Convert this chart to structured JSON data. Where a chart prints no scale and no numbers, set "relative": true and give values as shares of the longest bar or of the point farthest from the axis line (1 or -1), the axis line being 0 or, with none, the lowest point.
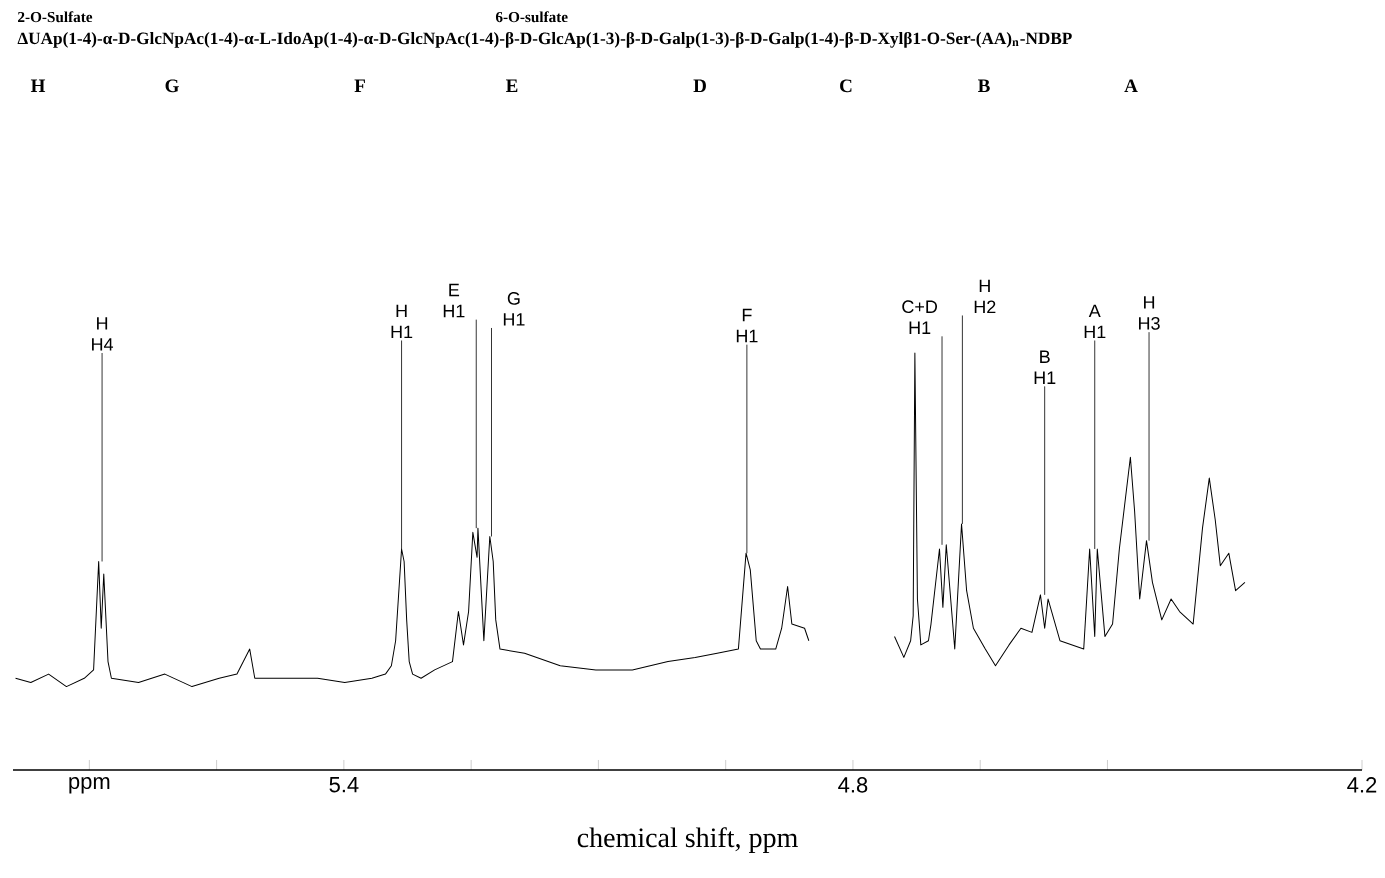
{
  "chart_data": {
    "type": "line",
    "relative": true,
    "color": "#000000",
    "title": "ΔUAp(1-4)-α-D-GlcNpAc(1-4)-α-L-IdoAp(1-4)-α-D-GlcNpAc(1-4)-β-D-GlcAp(1-3)-β-D-Galp(1-3)-β-D-Galp(1-4)-β-D-Xylβ1-O-Ser-(AA)$_{n}$-NDBP",
    "xlabel": "chemical shift, ppm",
    "xlim": [
      5.79,
      4.2
    ],
    "xticks": [
      {
        "value": 5.7,
        "label": "ppm"
      },
      {
        "value": 5.55,
        "label": null
      },
      5.4,
      {
        "value": 5.25,
        "label": null
      },
      {
        "value": 5.1,
        "label": null
      },
      {
        "value": 4.95,
        "label": null
      },
      4.8,
      {
        "value": 4.65,
        "label": null
      },
      {
        "value": 4.5,
        "label": null
      },
      4.2
    ],
    "x": [
      5.787,
      5.769,
      5.748,
      5.727,
      5.706,
      5.695,
      5.689,
      5.686,
      5.683,
      5.678,
      5.674,
      5.642,
      5.611,
      5.579,
      5.547,
      5.526,
      5.511,
      5.505,
      5.462,
      5.431,
      5.399,
      5.367,
      5.351,
      5.344,
      5.339,
      5.332,
      5.329,
      5.326,
      5.323,
      5.319,
      5.309,
      5.293,
      5.272,
      5.265,
      5.259,
      5.253,
      5.248,
      5.243,
      5.242,
      5.235,
      5.228,
      5.224,
      5.221,
      5.216,
      5.187,
      5.145,
      5.103,
      5.06,
      5.018,
      4.986,
      4.96,
      4.935,
      4.926,
      4.921,
      4.914,
      4.909,
      4.891,
      4.884,
      4.877,
      4.872,
      4.857,
      4.852,
      4.8,
      4.751,
      4.74,
      4.732,
      4.729,
      4.727,
      4.724,
      4.72,
      4.711,
      4.708,
      4.698,
      4.694,
      4.69,
      4.68,
      4.672,
      4.666,
      4.658,
      4.644,
      4.632,
      4.616,
      4.602,
      4.589,
      4.579,
      4.574,
      4.57,
      4.556,
      4.528,
      4.521,
      4.515,
      4.512,
      4.503,
      4.494,
      4.486,
      4.473,
      4.468,
      4.462,
      4.454,
      4.447,
      4.436,
      4.425,
      4.415,
      4.399,
      4.388,
      4.38,
      4.373,
      4.367,
      4.357,
      4.349,
      4.338
    ],
    "values": [
      0.22,
      0.21,
      0.23,
      0.2,
      0.22,
      0.24,
      0.5,
      0.34,
      0.47,
      0.26,
      0.22,
      0.21,
      0.23,
      0.2,
      0.22,
      0.23,
      0.29,
      0.22,
      0.22,
      0.22,
      0.21,
      0.22,
      0.23,
      0.25,
      0.31,
      0.53,
      0.5,
      0.36,
      0.26,
      0.23,
      0.22,
      0.24,
      0.26,
      0.38,
      0.3,
      0.38,
      0.57,
      0.51,
      0.58,
      0.31,
      0.56,
      0.5,
      0.36,
      0.29,
      0.28,
      0.25,
      0.24,
      0.24,
      0.26,
      0.27,
      0.28,
      0.29,
      0.52,
      0.48,
      0.31,
      0.29,
      0.29,
      0.34,
      0.44,
      0.35,
      0.34,
      0.31,
      null,
      0.32,
      0.27,
      0.31,
      0.37,
      1.0,
      0.41,
      0.3,
      0.31,
      0.35,
      0.53,
      0.39,
      0.54,
      0.29,
      0.59,
      0.43,
      0.34,
      0.29,
      0.25,
      0.3,
      0.34,
      0.33,
      0.42,
      0.34,
      0.41,
      0.31,
      0.29,
      0.53,
      0.32,
      0.53,
      0.32,
      0.35,
      0.53,
      0.75,
      0.62,
      0.41,
      0.55,
      0.45,
      0.36,
      0.41,
      0.38,
      0.35,
      0.58,
      0.7,
      0.6,
      0.49,
      0.52,
      0.43,
      0.45
    ],
    "annotations": [
      "2-O-Sulfate",
      "6-O-sulfate",
      "H",
      "G",
      "F",
      "E",
      "D",
      "C",
      "B",
      "A",
      {
        "text": "H H4",
        "x": 5.685,
        "y": 0.5
      },
      {
        "text": "H H1",
        "x": 5.332,
        "y": 0.53
      },
      {
        "text": "E H1",
        "x": 5.244,
        "y": 0.58
      },
      {
        "text": "G H1",
        "x": 5.226,
        "y": 0.56
      },
      {
        "text": "F H1",
        "x": 4.925,
        "y": 0.52
      },
      {
        "text": "C+D H1",
        "x": 4.695,
        "y": 0.54
      },
      {
        "text": "H H2",
        "x": 4.671,
        "y": 0.59
      },
      {
        "text": "B H1",
        "x": 4.574,
        "y": 0.42
      },
      {
        "text": "A H1",
        "x": 4.515,
        "y": 0.53
      },
      {
        "text": "H H3",
        "x": 4.451,
        "y": 0.55
      }
    ]
  }
}
